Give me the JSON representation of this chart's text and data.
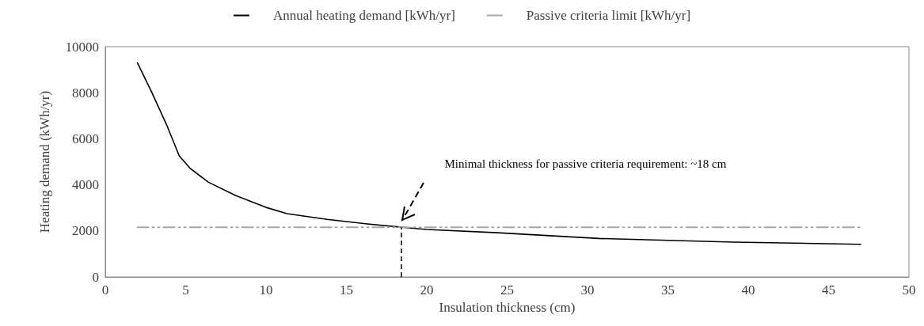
{
  "chart_data": {
    "type": "line",
    "xlabel": "Insulation thickness (cm)",
    "ylabel": "Heating demand (kWh/yr)",
    "xlim": [
      0,
      50
    ],
    "xticks": [
      0,
      5,
      10,
      15,
      20,
      25,
      30,
      35,
      40,
      45,
      50
    ],
    "ylim": [
      0,
      10000
    ],
    "yticks": [
      0,
      2000,
      4000,
      6000,
      8000,
      10000
    ],
    "grid": false,
    "legend": "top",
    "marker": "none",
    "series": [
      {
        "name": "Annual heating demand [kWh/yr]",
        "color": "#000000",
        "line_style": "solid",
        "x": [
          2,
          2.9,
          3.8,
          4.6,
          5.3,
          6.4,
          8.1,
          10,
          11.3,
          13.8,
          16.3,
          18.4,
          20,
          24.4,
          30.7,
          39.1,
          47
        ],
        "values": [
          9300,
          8000,
          6630,
          5260,
          4700,
          4120,
          3540,
          3020,
          2750,
          2500,
          2300,
          2160,
          2060,
          1920,
          1670,
          1510,
          1420
        ]
      },
      {
        "name": "Passive criteria limit [kWh/yr]",
        "color": "#a6a6a6",
        "line_style": "dashed",
        "x": [
          2,
          47
        ],
        "values": [
          2160,
          2160
        ]
      }
    ],
    "ref_lines": [
      {
        "axis": "x",
        "value": 18.4,
        "color": "#000000",
        "line_style": "dashed"
      }
    ],
    "annotations": [
      "Minimal thickness for passive criteria requirement: ~18 cm"
    ]
  }
}
